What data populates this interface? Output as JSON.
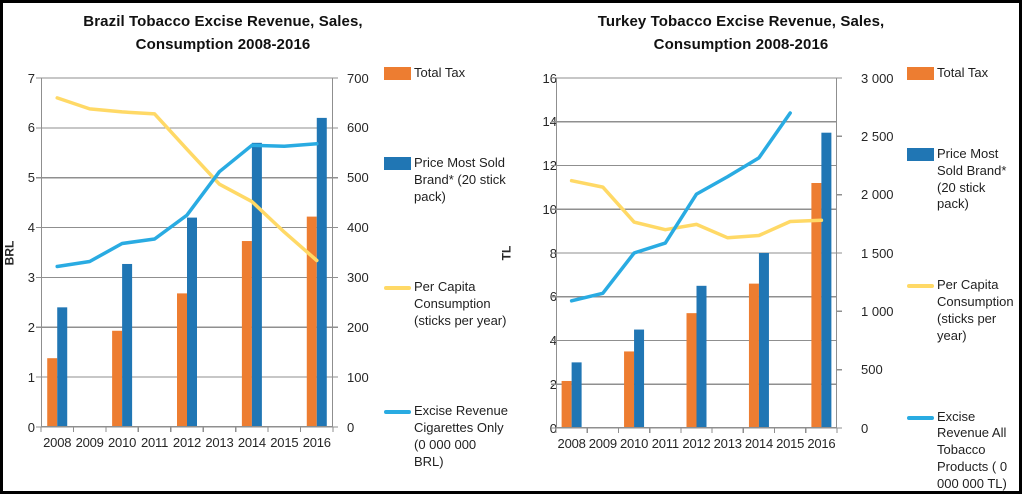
{
  "page": {
    "background": "#ffffff",
    "border_color": "#000000"
  },
  "colors": {
    "orange": "#ED7D31",
    "blue": "#2076B4",
    "yellow": "#FFD966",
    "cyan": "#29ABE2",
    "grid": "#8F8F8F",
    "axis": "#8F8F8F",
    "text": "#262626"
  },
  "chart_data": [
    {
      "type": "bar+line combo",
      "title_lines": [
        "Brazil Tobacco Excise Revenue, Sales,",
        "Consumption 2008-2016"
      ],
      "categories": [
        "2008",
        "2009",
        "2010",
        "2011",
        "2012",
        "2013",
        "2014",
        "2015",
        "2016"
      ],
      "left_axis": {
        "label": "BRL",
        "min": 0,
        "max": 7,
        "ticks": [
          "7",
          "6",
          "5",
          "4",
          "3",
          "2",
          "1",
          "0"
        ]
      },
      "right_axis": {
        "min": 0,
        "max": 700,
        "ticks": [
          "700",
          "600",
          "500",
          "400",
          "300",
          "200",
          "100",
          "0"
        ]
      },
      "grid": "horizontal",
      "legend_position": "right",
      "series": [
        {
          "name": "Total Tax",
          "kind": "bar",
          "axis": "left",
          "color_key": "orange",
          "values": [
            1.38,
            null,
            1.93,
            null,
            2.68,
            null,
            3.73,
            null,
            4.22
          ]
        },
        {
          "name": "Price Most Sold Brand* (20 stick pack)",
          "kind": "bar",
          "axis": "left",
          "color_key": "blue",
          "values": [
            2.4,
            null,
            3.27,
            null,
            4.2,
            null,
            5.7,
            null,
            6.2
          ]
        },
        {
          "name": "Per Capita Consumption (sticks per year)",
          "kind": "line",
          "axis": "right",
          "color_key": "yellow",
          "values": [
            660,
            638,
            632,
            628,
            557,
            487,
            452,
            391,
            334
          ]
        },
        {
          "name": "Excise Revenue Cigarettes Only (0 000 000 BRL)",
          "kind": "line",
          "axis": "right",
          "color_key": "cyan",
          "values": [
            322,
            332,
            368,
            377,
            425,
            512,
            565,
            563,
            568
          ]
        }
      ]
    },
    {
      "type": "bar+line combo",
      "title_lines": [
        "Turkey Tobacco Excise Revenue, Sales,",
        "Consumption 2008-2016"
      ],
      "categories": [
        "2008",
        "2009",
        "2010",
        "2011",
        "2012",
        "2013",
        "2014",
        "2015",
        "2016"
      ],
      "left_axis": {
        "label": "TL",
        "min": 0,
        "max": 16,
        "ticks": [
          "16",
          "14",
          "12",
          "10",
          "8",
          "6",
          "4",
          "2",
          "0"
        ]
      },
      "right_axis": {
        "min": 0,
        "max": 3000,
        "ticks": [
          "3 000",
          "2 500",
          "2 000",
          "1 500",
          "1 000",
          "500",
          "0"
        ]
      },
      "grid": "horizontal",
      "legend_position": "right",
      "series": [
        {
          "name": "Total Tax",
          "kind": "bar",
          "axis": "left",
          "color_key": "orange",
          "values": [
            2.15,
            null,
            3.5,
            null,
            5.25,
            null,
            6.6,
            null,
            11.2
          ]
        },
        {
          "name": "Price Most Sold Brand* (20 stick pack)",
          "kind": "bar",
          "axis": "left",
          "color_key": "blue",
          "values": [
            3.0,
            null,
            4.5,
            null,
            6.5,
            null,
            8.0,
            null,
            13.5
          ]
        },
        {
          "name": "Per Capita Consumption (sticks per year)",
          "kind": "line",
          "axis": "right",
          "color_key": "yellow",
          "values": [
            2120,
            2065,
            1765,
            1700,
            1745,
            1630,
            1650,
            1770,
            1780
          ]
        },
        {
          "name": "Excise Revenue All Tobacco Products ( 0 000 000 TL)",
          "kind": "line",
          "axis": "right",
          "color_key": "cyan",
          "values": [
            1090,
            1155,
            1500,
            1585,
            2005,
            2155,
            2315,
            2700,
            null
          ]
        }
      ]
    }
  ]
}
